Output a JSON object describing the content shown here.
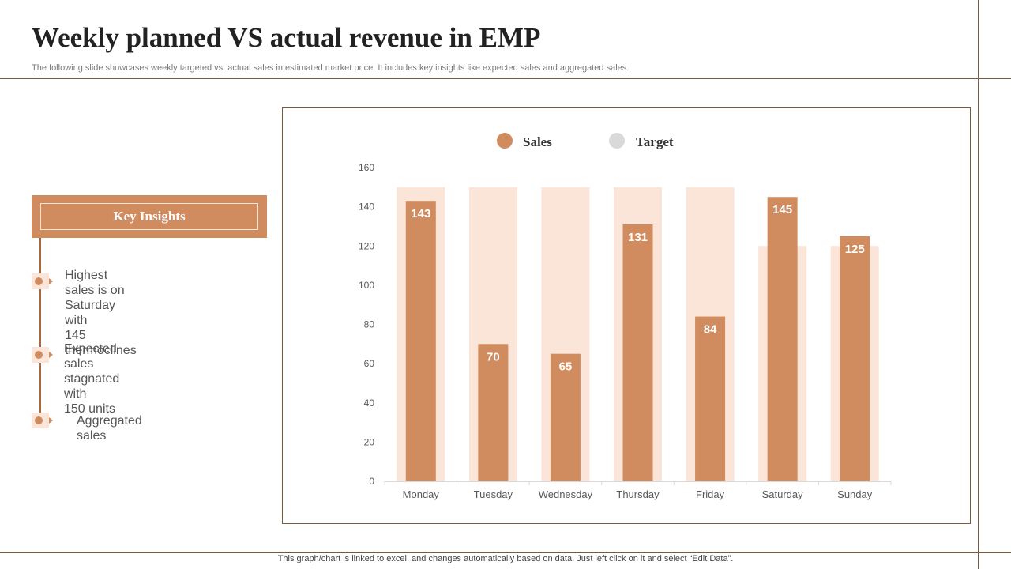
{
  "header": {
    "title": "Weekly planned VS actual revenue in EMP",
    "subtitle": "The following slide showcases weekly targeted vs.  actual sales in estimated market price. It includes key insights like expected sales and aggregated sales."
  },
  "insights": {
    "heading": "Key Insights",
    "items": [
      {
        "line1": "Highest sales is on Saturday with",
        "line2": "145 thermoclines"
      },
      {
        "line1": "Expected sales stagnated with",
        "line2": "150 units"
      },
      {
        "line1": "Aggregated sales",
        "line2": ""
      }
    ]
  },
  "footer": {
    "note": "This graph/chart is linked to excel,  and changes automatically based on data. Just left click on it and select “Edit Data”."
  },
  "colors": {
    "sales": "#d08c5f",
    "target": "#fbe4d8",
    "legend_target": "#d9d9d9",
    "accent": "#d08c5f"
  },
  "chart_data": {
    "type": "bar",
    "title": "",
    "xlabel": "",
    "ylabel": "",
    "categories": [
      "Monday",
      "Tuesday",
      "Wednesday",
      "Thursday",
      "Friday",
      "Saturday",
      "Sunday"
    ],
    "series": [
      {
        "name": "Sales",
        "values": [
          143,
          70,
          65,
          131,
          84,
          145,
          125
        ]
      },
      {
        "name": "Target",
        "values": [
          150,
          150,
          150,
          150,
          150,
          120,
          120
        ]
      }
    ],
    "data_labels": [
      "143",
      "70",
      "65",
      "131",
      "84",
      "145",
      "125"
    ],
    "ylim": [
      0,
      160
    ],
    "yticks": [
      0,
      20,
      40,
      60,
      80,
      100,
      120,
      140,
      160
    ],
    "ytick_labels": [
      "0",
      "20",
      "40",
      "60",
      "80",
      "100",
      "120",
      "140",
      "160"
    ],
    "legend_position": "top",
    "grid": false
  }
}
